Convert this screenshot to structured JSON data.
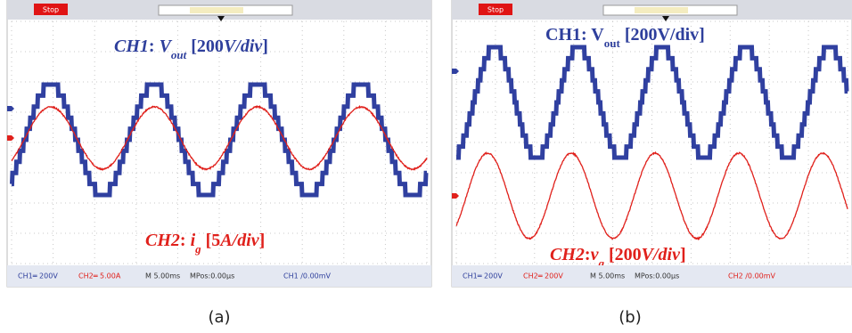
{
  "panels": [
    {
      "toolbar": {
        "stop": "Stop"
      },
      "annotations": [
        {
          "color": "#2e3f9c",
          "parts": [
            {
              "text": "CH1",
              "italic": true
            },
            {
              "text": ": ",
              "italic": false
            },
            {
              "text": "V",
              "italic": true
            },
            {
              "text": "out",
              "italic": true,
              "sub": true
            },
            {
              "text": " [200",
              "italic": false
            },
            {
              "text": "V/div",
              "italic": true
            },
            {
              "text": "]",
              "italic": false
            }
          ]
        },
        {
          "color": "#e0201b",
          "parts": [
            {
              "text": "CH2",
              "italic": true
            },
            {
              "text": ": ",
              "italic": false
            },
            {
              "text": "i",
              "italic": true
            },
            {
              "text": "g",
              "italic": true,
              "sub": true
            },
            {
              "text": " [5",
              "italic": false
            },
            {
              "text": "A/div",
              "italic": true
            },
            {
              "text": "]",
              "italic": false
            }
          ]
        }
      ],
      "status": [
        {
          "text": "CH1═ 200V",
          "color": "#2e3f9c"
        },
        {
          "text": "CH2═ 5.00A",
          "color": "#e0201b"
        },
        {
          "text": "M 5.00ms",
          "color": "#333333"
        },
        {
          "text": "MPos:0.00µs",
          "color": "#333333"
        },
        {
          "text": "CH1 ∕0.00mV",
          "color": "#2e3f9c"
        }
      ],
      "caption": "(a)"
    },
    {
      "toolbar": {
        "stop": "Stop"
      },
      "annotations": [
        {
          "color": "#2e3f9c",
          "parts": [
            {
              "text": "CH1: V",
              "italic": false
            },
            {
              "text": "out",
              "italic": false,
              "sub": true
            },
            {
              "text": " [200V/div]",
              "italic": false
            }
          ]
        },
        {
          "color": "#e0201b",
          "parts": [
            {
              "text": "CH2",
              "italic": true
            },
            {
              "text": ":",
              "italic": false
            },
            {
              "text": "v",
              "italic": true
            },
            {
              "text": "g",
              "italic": true,
              "sub": true
            },
            {
              "text": " [200",
              "italic": false
            },
            {
              "text": "V/div",
              "italic": true
            },
            {
              "text": "]",
              "italic": false
            }
          ]
        }
      ],
      "status": [
        {
          "text": "CH1═ 200V",
          "color": "#2e3f9c"
        },
        {
          "text": "CH2═ 200V",
          "color": "#e0201b"
        },
        {
          "text": "M 5.00ms",
          "color": "#333333"
        },
        {
          "text": "MPos:0.00µs",
          "color": "#333333"
        },
        {
          "text": "CH2 ∕0.00mV",
          "color": "#e0201b"
        }
      ],
      "caption": "(b)"
    }
  ]
}
